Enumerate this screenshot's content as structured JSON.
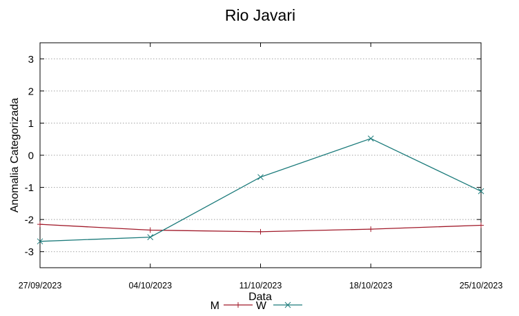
{
  "chart_data": {
    "type": "line",
    "title": "Rio Javari",
    "xlabel": "Data",
    "ylabel": "Anomalia Categorizada",
    "x": [
      "27/09/2023",
      "04/10/2023",
      "11/10/2023",
      "18/10/2023",
      "25/10/2023"
    ],
    "ylim": [
      -3.5,
      3.5
    ],
    "yticks": [
      3,
      2,
      1,
      0,
      -1,
      -2,
      -3
    ],
    "grid": true,
    "legend_position": "bottom",
    "series": [
      {
        "name": "M",
        "color": "#a01828",
        "marker": "plus",
        "values": [
          -2.15,
          -2.33,
          -2.38,
          -2.3,
          -2.18
        ]
      },
      {
        "name": "W",
        "color": "#1a7a7a",
        "marker": "cross",
        "values": [
          -2.68,
          -2.55,
          -0.68,
          0.52,
          -1.12
        ]
      }
    ]
  }
}
